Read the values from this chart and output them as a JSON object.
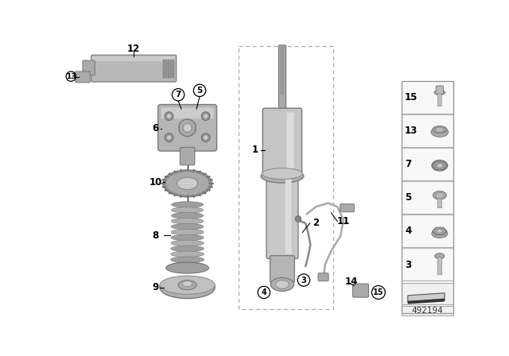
{
  "background_color": "#ffffff",
  "diagram_id": "492194",
  "part_color": "#b0b0b0",
  "part_dark": "#888888",
  "part_light": "#d0d0d0",
  "line_color": "#444444",
  "sidebar_items": [
    {
      "num": "15",
      "type": "bolt_flange"
    },
    {
      "num": "13",
      "type": "nut_dome"
    },
    {
      "num": "7",
      "type": "nut_hex_large"
    },
    {
      "num": "5",
      "type": "bolt_hex"
    },
    {
      "num": "4",
      "type": "nut_hex_flange"
    },
    {
      "num": "3",
      "type": "bolt_long"
    }
  ]
}
